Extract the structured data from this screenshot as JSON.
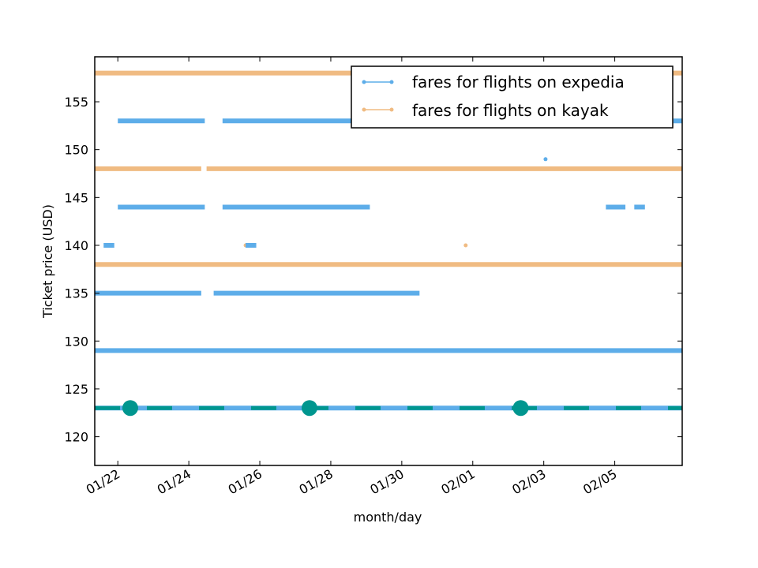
{
  "chart_data": {
    "type": "line",
    "xlabel": "month/day",
    "ylabel": "Ticket price (USD)",
    "xlim": [
      "2014-01-21.35",
      "2014-02-06.9"
    ],
    "ylim": [
      117,
      159.7
    ],
    "x_ticks": [
      {
        "date": "2014-01-22",
        "label": "01/22"
      },
      {
        "date": "2014-01-24",
        "label": "01/24"
      },
      {
        "date": "2014-01-26",
        "label": "01/26"
      },
      {
        "date": "2014-01-28",
        "label": "01/28"
      },
      {
        "date": "2014-01-30",
        "label": "01/30"
      },
      {
        "date": "2014-02-01",
        "label": "02/01"
      },
      {
        "date": "2014-02-03",
        "label": "02/03"
      },
      {
        "date": "2014-02-05",
        "label": "02/05"
      }
    ],
    "y_ticks": [
      120,
      125,
      130,
      135,
      140,
      145,
      150,
      155
    ],
    "legend": {
      "placement": "top-right"
    },
    "series": [
      {
        "name": "fares for flights on expedia",
        "color": "#5dade9",
        "levels": [
          {
            "y": 153,
            "segments": [
              [
                "2014-01-22.0",
                "2014-01-24.45"
              ],
              [
                "2014-01-24.95",
                "2014-01-29.3"
              ],
              [
                "2014-02-06.65",
                "2014-02-06.9"
              ]
            ]
          },
          {
            "y": 144,
            "segments": [
              [
                "2014-01-22.0",
                "2014-01-24.45"
              ],
              [
                "2014-01-24.95",
                "2014-01-29.1"
              ],
              [
                "2014-02-04.75",
                "2014-02-05.3"
              ],
              [
                "2014-02-05.55",
                "2014-02-05.85"
              ]
            ]
          },
          {
            "y": 140,
            "segments": [
              [
                "2014-01-21.6",
                "2014-01-21.9"
              ],
              [
                "2014-01-25.6",
                "2014-01-25.9"
              ]
            ]
          },
          {
            "y": 135,
            "segments": [
              [
                "2014-01-21.35",
                "2014-01-24.35"
              ],
              [
                "2014-01-24.7",
                "2014-01-30.5"
              ]
            ]
          },
          {
            "y": 129,
            "segments": [
              [
                "2014-01-21.35",
                "2014-02-06.9"
              ]
            ]
          },
          {
            "y": 123,
            "segments": [
              [
                "2014-01-21.35",
                "2014-02-06.9"
              ]
            ]
          }
        ],
        "isolated_points": [
          {
            "x": "2014-02-03.05",
            "y": 149
          }
        ]
      },
      {
        "name": "fares for flights on kayak",
        "color": "#f0bb82",
        "levels": [
          {
            "y": 158,
            "segments": [
              [
                "2014-01-21.35",
                "2014-02-06.9"
              ]
            ]
          },
          {
            "y": 148,
            "segments": [
              [
                "2014-01-21.35",
                "2014-01-24.35"
              ],
              [
                "2014-01-24.5",
                "2014-02-06.9"
              ]
            ]
          },
          {
            "y": 138,
            "segments": [
              [
                "2014-01-21.35",
                "2014-02-06.9"
              ]
            ]
          }
        ],
        "isolated_points": [
          {
            "x": "2014-01-25.6",
            "y": 140
          },
          {
            "x": "2014-01-31.8",
            "y": 140
          }
        ]
      }
    ],
    "highlight": {
      "color": "#00968f",
      "y": 123,
      "markers": [
        "2014-01-22.35",
        "2014-01-27.4",
        "2014-02-02.35"
      ]
    }
  }
}
